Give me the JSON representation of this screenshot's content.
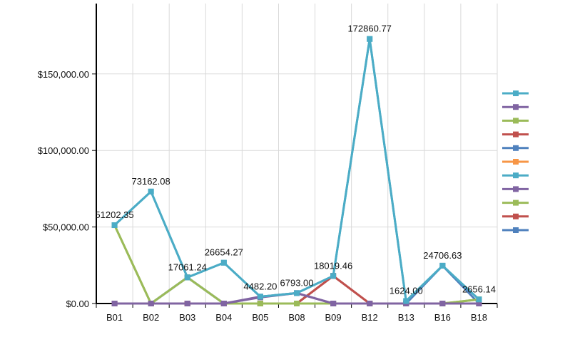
{
  "chart_data": {
    "type": "line",
    "categories": [
      "B01",
      "B02",
      "B03",
      "B04",
      "B05",
      "B08",
      "B09",
      "B12",
      "B13",
      "B16",
      "B18"
    ],
    "yticks": [
      0,
      50000,
      100000,
      150000
    ],
    "ytick_labels": [
      "$0.00",
      "$50,000.00",
      "$100,000.00",
      "$150,000.00"
    ],
    "ylim": [
      0,
      196000
    ],
    "grid": true,
    "legend_position": "right",
    "series": [
      {
        "color": "#4bacc6",
        "values": [
          51202.35,
          73162.08,
          17061.24,
          26654.27,
          4482.2,
          6793.0,
          18019.46,
          172860.77,
          1624.0,
          24706.63,
          2656.14
        ]
      },
      {
        "color": "#8064a2",
        "values": [
          0,
          0,
          0,
          0,
          4000,
          6793.0,
          0,
          0,
          0,
          0,
          0
        ]
      },
      {
        "color": "#9bbb59",
        "values": [
          51202.35,
          0,
          17061.24,
          0,
          0,
          0,
          0,
          0,
          0,
          0,
          2656.14
        ]
      },
      {
        "color": "#c0504d",
        "values": [
          0,
          0,
          0,
          0,
          0,
          0,
          18019.46,
          0,
          0,
          0,
          0
        ]
      },
      {
        "color": "#4f81bd",
        "values": [
          0,
          0,
          17061.24,
          0,
          0,
          0,
          0,
          0,
          0,
          24706.63,
          0
        ]
      },
      {
        "color": "#f79646",
        "values": [
          0,
          0,
          0,
          0,
          0,
          0,
          0,
          0,
          0,
          0,
          0
        ]
      },
      {
        "color": "#4bacc6",
        "values": [
          51202.35,
          73162.08,
          17061.24,
          26654.27,
          4482.2,
          6793.0,
          18019.46,
          172860.77,
          1624.0,
          24706.63,
          2656.14
        ]
      },
      {
        "color": "#8064a2",
        "values": [
          0,
          0,
          0,
          0,
          4482.2,
          6793.0,
          0,
          0,
          0,
          0,
          0
        ]
      },
      {
        "color": "#9bbb59",
        "values": [
          51202.35,
          0,
          17061.24,
          0,
          0,
          0,
          0,
          0,
          0,
          0,
          2656.14
        ]
      },
      {
        "color": "#c0504d",
        "values": [
          0,
          0,
          0,
          0,
          0,
          0,
          18019.46,
          0,
          0,
          0,
          0
        ]
      },
      {
        "color": "#4f81bd",
        "values": [
          0,
          0,
          0,
          0,
          0,
          0,
          0,
          0,
          0,
          0,
          0
        ]
      }
    ],
    "data_labels": [
      "51202.35",
      "73162.08",
      "17061.24",
      "26654.27",
      "4482.20",
      "6793.00",
      "18019.46",
      "172860.77",
      "1624.00",
      "24706.63",
      "2656.14"
    ]
  }
}
